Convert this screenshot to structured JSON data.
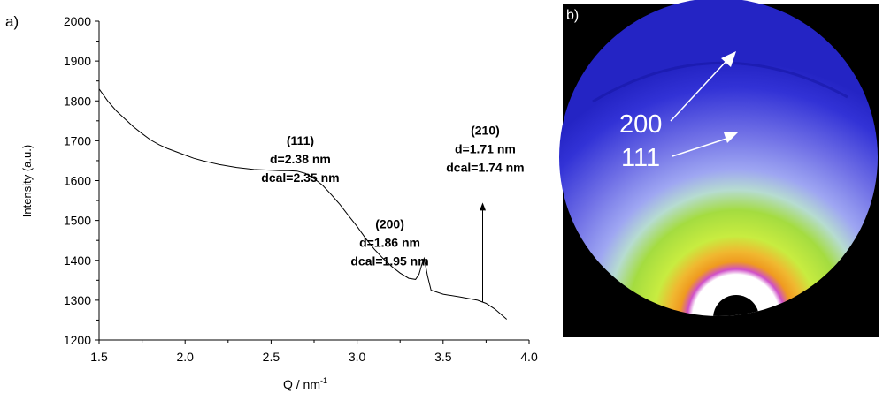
{
  "panel_a_label": "a)",
  "panel_b_label": "b)",
  "chart_data": {
    "type": "line",
    "title": "",
    "xlabel": "Q / nm",
    "xlabel_superscript": "-1",
    "ylabel": "Intensity (a.u.)",
    "xlim": [
      1.5,
      4.0
    ],
    "ylim": [
      1200,
      2000
    ],
    "xticks": [
      "1.5",
      "2.0",
      "2.5",
      "3.0",
      "3.5",
      "4.0"
    ],
    "yticks": [
      "1200",
      "1300",
      "1400",
      "1500",
      "1600",
      "1700",
      "1800",
      "1900",
      "2000"
    ],
    "grid": false,
    "series": [
      {
        "x": [
          1.5,
          1.55,
          1.6,
          1.65,
          1.7,
          1.75,
          1.8,
          1.85,
          1.9,
          1.95,
          2.0,
          2.05,
          2.1,
          2.15,
          2.2,
          2.3,
          2.4,
          2.5,
          2.55,
          2.6,
          2.65,
          2.7,
          2.75,
          2.8,
          2.85,
          2.9,
          2.95,
          3.0,
          3.05,
          3.1,
          3.15,
          3.2,
          3.25,
          3.3,
          3.34,
          3.36,
          3.38,
          3.39,
          3.41,
          3.43,
          3.5,
          3.6,
          3.7,
          3.75,
          3.8,
          3.87
        ],
        "y": [
          1830,
          1800,
          1775,
          1755,
          1735,
          1718,
          1702,
          1690,
          1680,
          1672,
          1664,
          1656,
          1650,
          1645,
          1640,
          1633,
          1628,
          1626,
          1625,
          1625,
          1624,
          1618,
          1605,
          1588,
          1565,
          1540,
          1512,
          1485,
          1455,
          1428,
          1405,
          1385,
          1368,
          1355,
          1352,
          1365,
          1395,
          1405,
          1360,
          1325,
          1315,
          1308,
          1300,
          1292,
          1278,
          1252
        ]
      }
    ],
    "annotations": [
      {
        "id": "111",
        "lines": [
          "(111)",
          "d=2.38 nm",
          "dcal=2.35 nm"
        ],
        "x": 2.67,
        "y": 1690
      },
      {
        "id": "200",
        "lines": [
          "(200)",
          "d=1.86 nm",
          "dcal=1.95 nm"
        ],
        "x": 3.19,
        "y": 1480
      },
      {
        "id": "210",
        "lines": [
          "(210)",
          "d=1.71 nm",
          "dcal=1.74 nm"
        ],
        "x": 3.745,
        "y": 1715
      }
    ],
    "arrow": {
      "x": 3.73,
      "y_start": 1295,
      "y_end": 1545
    }
  },
  "pattern_labels": {
    "ring_200": "200",
    "ring_111": "111"
  },
  "colors": {
    "background": "#000000",
    "outer_blue": "#3030d8",
    "mid_blue": "#8a92ee",
    "green": "#b2e63c",
    "orange": "#f0a020",
    "magenta": "#d050c8",
    "arrow": "#ffffff"
  }
}
